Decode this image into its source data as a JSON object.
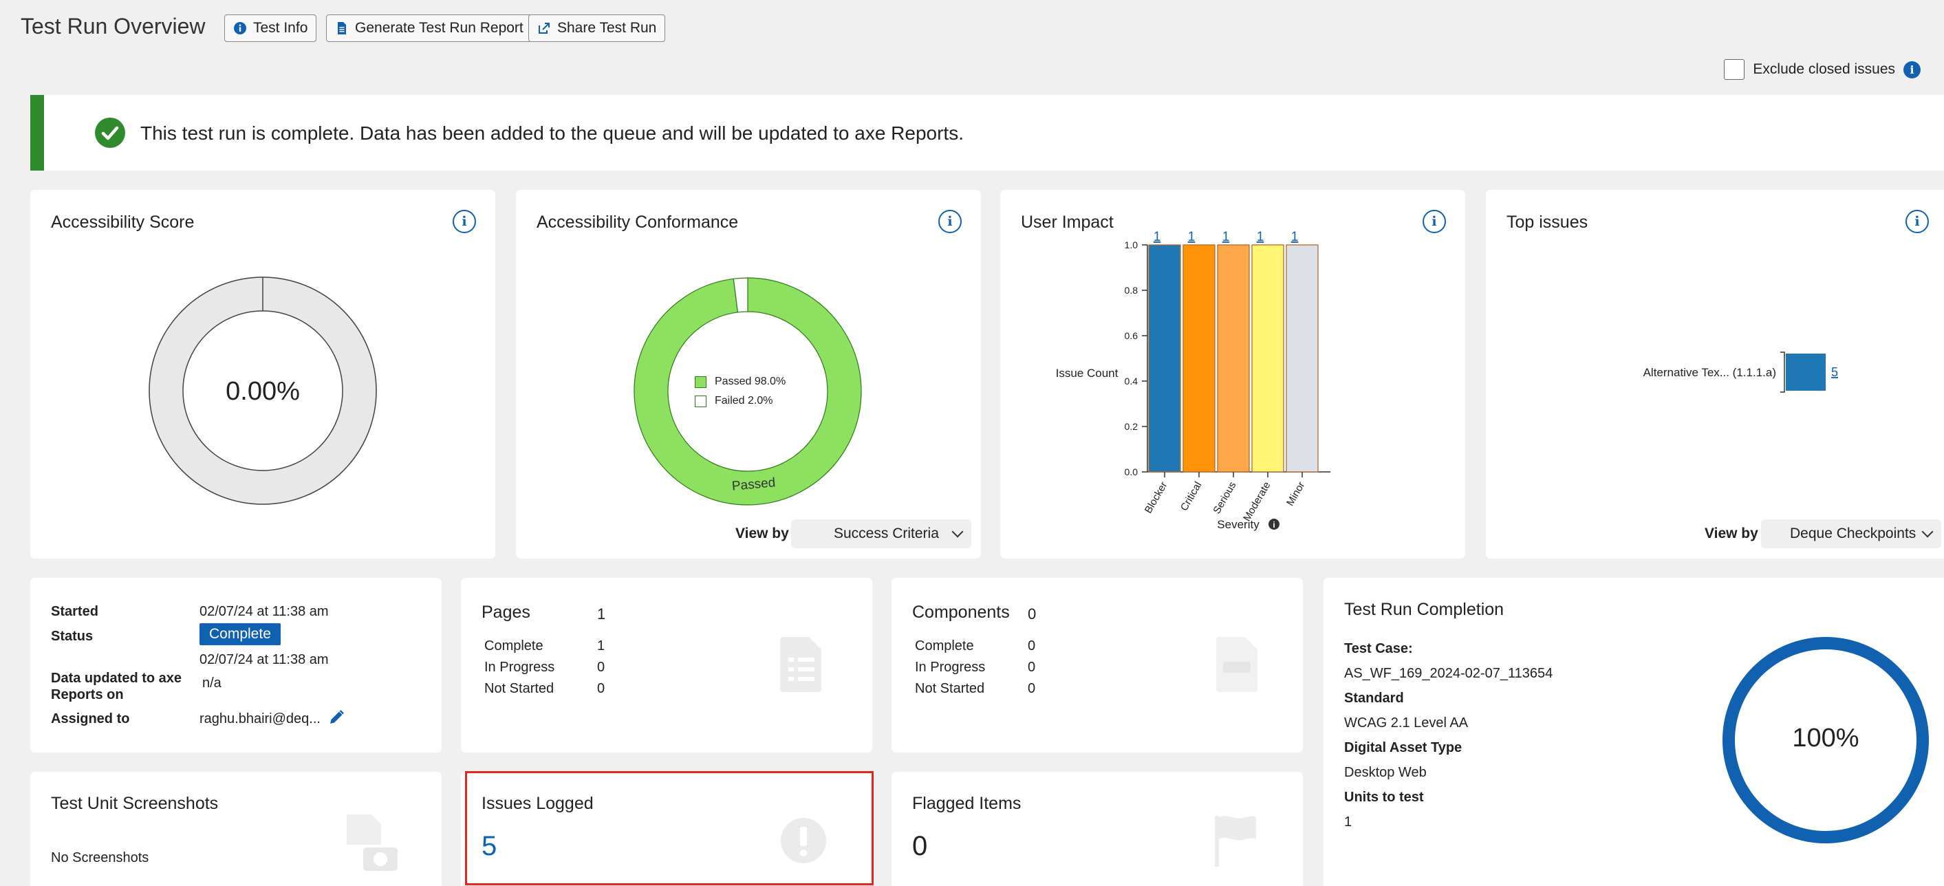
{
  "header": {
    "title": "Test Run Overview",
    "buttons": [
      {
        "label": "Test Info",
        "icon": "info-icon"
      },
      {
        "label": "Generate Test Run Report",
        "icon": "document-icon"
      },
      {
        "label": "Share Test Run",
        "icon": "share-icon"
      }
    ],
    "exclude_closed_label": "Exclude closed issues",
    "exclude_closed_checked": false
  },
  "banner": {
    "message": "This test run is complete. Data has been added to the queue and will be updated to axe Reports.",
    "icon": "check-circle-icon",
    "color": "#2f8b2b"
  },
  "score_card": {
    "title": "Accessibility Score",
    "value": "0.00%"
  },
  "conformance_card": {
    "title": "Accessibility Conformance",
    "view_by_label": "View by",
    "view_by_value": "Success Criteria",
    "donut_label": "Passed"
  },
  "impact_card": {
    "title": "User Impact"
  },
  "top_issues_card": {
    "title": "Top issues",
    "view_by_label": "View by",
    "view_by_value": "Deque Checkpoints"
  },
  "chart_data": [
    {
      "type": "pie",
      "title": "",
      "categories": [
        "Passed",
        "Failed"
      ],
      "values": [
        98.0,
        2.0
      ],
      "legend": [
        "Passed 98.0%",
        "Failed 2.0%"
      ],
      "colors": [
        "#8ee060",
        "#ffffff"
      ]
    },
    {
      "type": "bar",
      "categories": [
        "Blocker",
        "Critical",
        "Serious",
        "Moderate",
        "Minor"
      ],
      "values": [
        1,
        1,
        1,
        1,
        1
      ],
      "data_labels": [
        "1",
        "1",
        "1",
        "1",
        "1"
      ],
      "colors": [
        "#1f77b4",
        "#ff9408",
        "#ffa84a",
        "#fff574",
        "#dde0e6"
      ],
      "xlabel": "Severity",
      "ylabel": "Issue Count",
      "ylim": [
        0,
        1
      ],
      "yticks": [
        "0.0",
        "0.2",
        "0.4",
        "0.6",
        "0.8",
        "1.0"
      ]
    },
    {
      "type": "bar",
      "orientation": "horizontal",
      "categories": [
        "Alternative Tex... (1.1.1.a)"
      ],
      "values": [
        5
      ],
      "data_labels": [
        "5"
      ],
      "colors": [
        "#1f77b4"
      ]
    }
  ],
  "details_card": {
    "started_label": "Started",
    "started_value": "02/07/24 at 11:38 am",
    "status_label": "Status",
    "status_value": "Complete",
    "data_updated_label": "Data updated to axe Reports on",
    "data_updated_date": "02/07/24 at 11:38 am",
    "data_updated_value": "n/a",
    "assigned_label": "Assigned to",
    "assigned_value": "raghu.bhairi@deq..."
  },
  "pages_card": {
    "title": "Pages",
    "total": "1",
    "rows": [
      {
        "label": "Complete",
        "value": "1"
      },
      {
        "label": "In Progress",
        "value": "0"
      },
      {
        "label": "Not Started",
        "value": "0"
      }
    ]
  },
  "components_card": {
    "title": "Components",
    "total": "0",
    "rows": [
      {
        "label": "Complete",
        "value": "0"
      },
      {
        "label": "In Progress",
        "value": "0"
      },
      {
        "label": "Not Started",
        "value": "0"
      }
    ]
  },
  "completion_card": {
    "title": "Test Run Completion",
    "test_case_label": "Test Case:",
    "test_case_value": "AS_WF_169_2024-02-07_113654",
    "standard_label": "Standard",
    "standard_value": "WCAG 2.1 Level AA",
    "asset_label": "Digital Asset Type",
    "asset_value": "Desktop Web",
    "units_label": "Units to test",
    "units_value": "1",
    "percent": "100%",
    "progress": 1.0,
    "ring_color": "#1062b0"
  },
  "screenshots_card": {
    "title": "Test Unit Screenshots",
    "empty_text": "No Screenshots"
  },
  "issues_card": {
    "title": "Issues Logged",
    "value": "5",
    "highlight_color": "#e0271f"
  },
  "flagged_card": {
    "title": "Flagged Items",
    "value": "0"
  }
}
